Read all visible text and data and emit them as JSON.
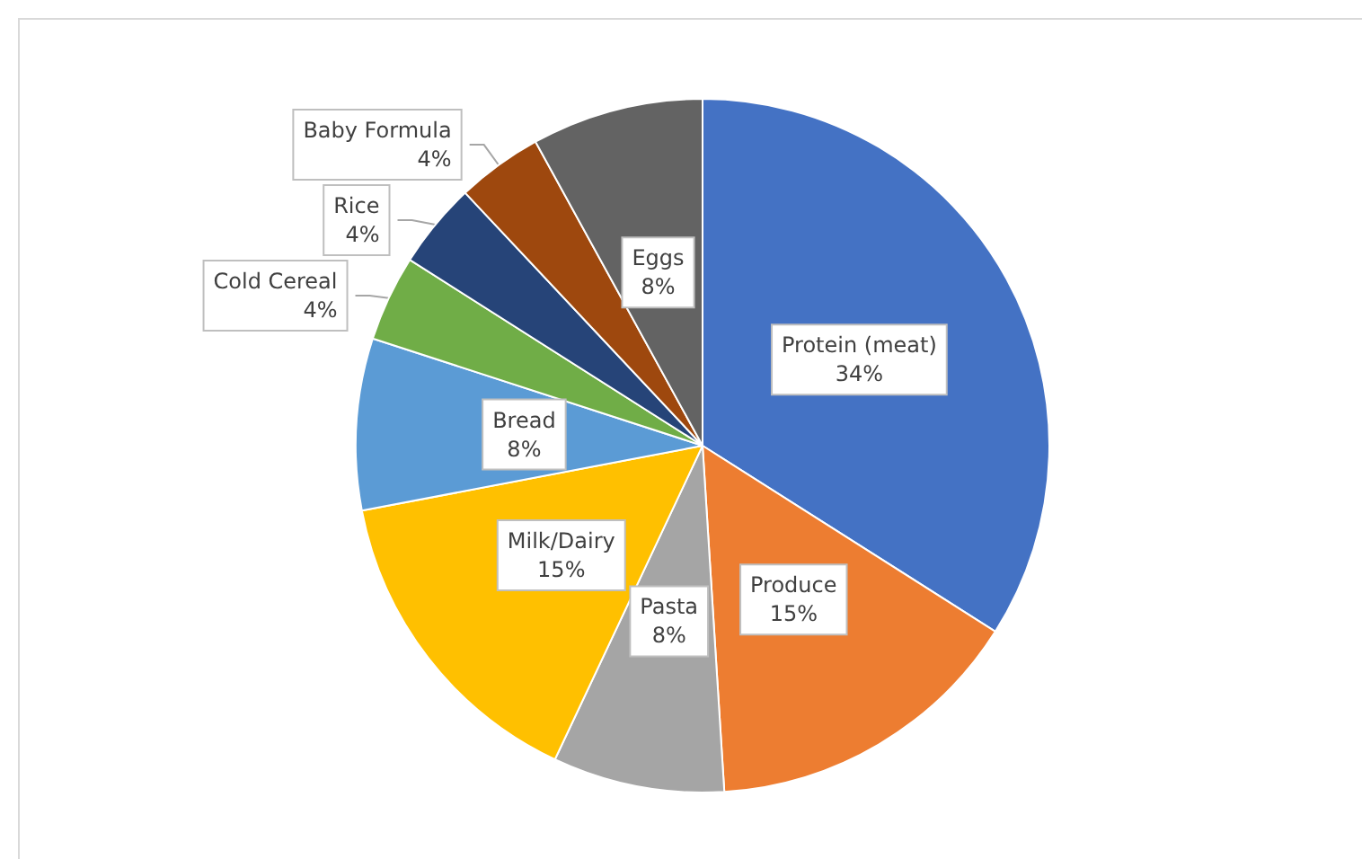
{
  "chart_data": {
    "type": "pie",
    "categories": [
      "Protein (meat)",
      "Produce",
      "Pasta",
      "Milk/Dairy",
      "Bread",
      "Cold Cereal",
      "Rice",
      "Baby Formula",
      "Eggs"
    ],
    "values": [
      34,
      15,
      8,
      15,
      8,
      4,
      4,
      4,
      8
    ],
    "value_labels": [
      "34%",
      "15%",
      "8%",
      "15%",
      "8%",
      "4%",
      "4%",
      "4%",
      "8%"
    ],
    "colors": [
      "#4472c4",
      "#ed7d31",
      "#a5a5a5",
      "#ffc000",
      "#5b9bd5",
      "#70ad47",
      "#264478",
      "#9e480e",
      "#636363"
    ],
    "legend": false
  }
}
